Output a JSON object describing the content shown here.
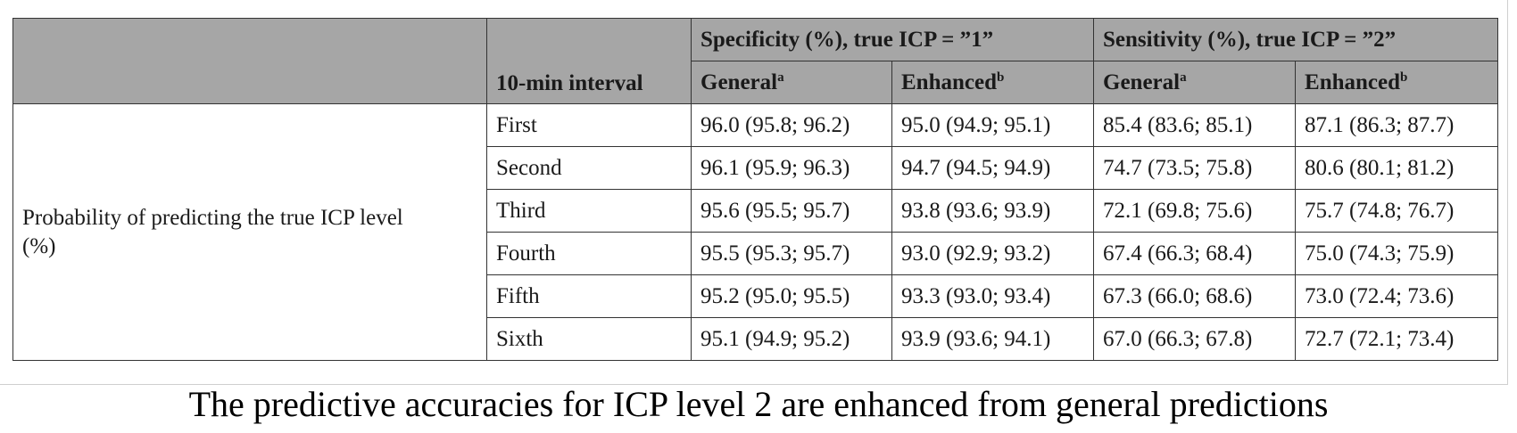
{
  "table": {
    "header": {
      "interval_label": "10-min interval",
      "group_specificity": "Specificity (%), true ICP = ”1”",
      "group_sensitivity": "Sensitivity (%), true ICP = ”2”",
      "general": "General",
      "general_note": "a",
      "enhanced": "Enhanced",
      "enhanced_note": "b"
    },
    "row_label": "Probability of predicting the true ICP level (%)",
    "rows": [
      {
        "interval": "First",
        "spec_general": "96.0 (95.8; 96.2)",
        "spec_enhanced": "95.0 (94.9; 95.1)",
        "sens_general": "85.4 (83.6; 85.1)",
        "sens_enhanced": "87.1 (86.3; 87.7)"
      },
      {
        "interval": "Second",
        "spec_general": "96.1 (95.9; 96.3)",
        "spec_enhanced": "94.7 (94.5; 94.9)",
        "sens_general": "74.7 (73.5; 75.8)",
        "sens_enhanced": "80.6 (80.1; 81.2)"
      },
      {
        "interval": "Third",
        "spec_general": "95.6 (95.5; 95.7)",
        "spec_enhanced": "93.8 (93.6; 93.9)",
        "sens_general": "72.1 (69.8; 75.6)",
        "sens_enhanced": "75.7 (74.8; 76.7)"
      },
      {
        "interval": "Fourth",
        "spec_general": "95.5 (95.3; 95.7)",
        "spec_enhanced": "93.0 (92.9; 93.2)",
        "sens_general": "67.4 (66.3; 68.4)",
        "sens_enhanced": "75.0 (74.3; 75.9)"
      },
      {
        "interval": "Fifth",
        "spec_general": "95.2 (95.0; 95.5)",
        "spec_enhanced": "93.3 (93.0; 93.4)",
        "sens_general": "67.3 (66.0; 68.6)",
        "sens_enhanced": "73.0 (72.4; 73.6)"
      },
      {
        "interval": "Sixth",
        "spec_general": "95.1 (94.9; 95.2)",
        "spec_enhanced": "93.9 (93.6; 94.1)",
        "sens_general": "67.0 (66.3; 67.8)",
        "sens_enhanced": "72.7 (72.1; 73.4)"
      }
    ]
  },
  "caption": "The predictive accuracies for ICP level 2 are enhanced from general predictions"
}
